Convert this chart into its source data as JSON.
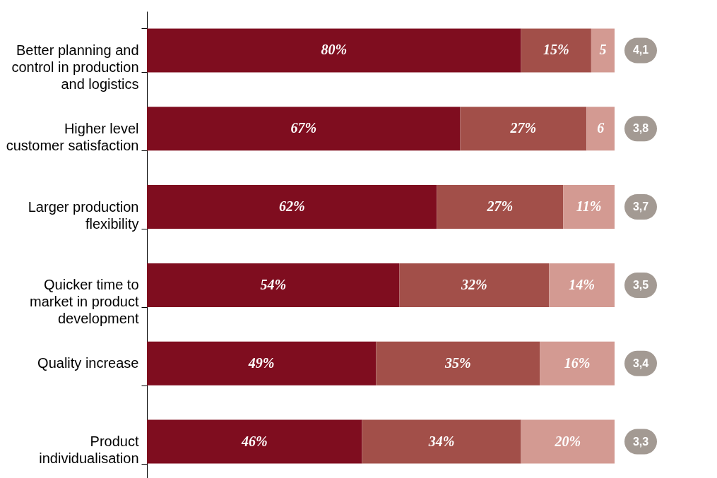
{
  "chart_data": {
    "type": "bar",
    "orientation": "horizontal",
    "stacked": true,
    "legend": false,
    "grid": false,
    "tick_labels": "y",
    "categories": [
      "Better planning and\ncontrol in production\nand logistics",
      "Higher level\ncustomer satisfaction",
      "Larger production\nflexibility",
      "Quicker time to\nmarket in product\ndevelopment",
      "Quality increase",
      "Product\nindividualisation"
    ],
    "series": [
      {
        "color": "#7f0d1f",
        "values": [
          80,
          67,
          62,
          54,
          49,
          46
        ],
        "value_labels": [
          "80%",
          "67%",
          "62%",
          "54%",
          "49%",
          "46%"
        ]
      },
      {
        "color": "#a24f49",
        "values": [
          15,
          27,
          27,
          32,
          35,
          34
        ],
        "value_labels": [
          "15%",
          "27%",
          "27%",
          "32%",
          "35%",
          "34%"
        ]
      },
      {
        "color": "#d39a92",
        "values": [
          5,
          6,
          11,
          14,
          16,
          20
        ],
        "value_labels": [
          "5",
          "6",
          "11%",
          "14%",
          "16%",
          "20%"
        ]
      }
    ],
    "annotations": [
      "4,1",
      "3,8",
      "3,7",
      "3,5",
      "3,4",
      "3,3"
    ]
  }
}
